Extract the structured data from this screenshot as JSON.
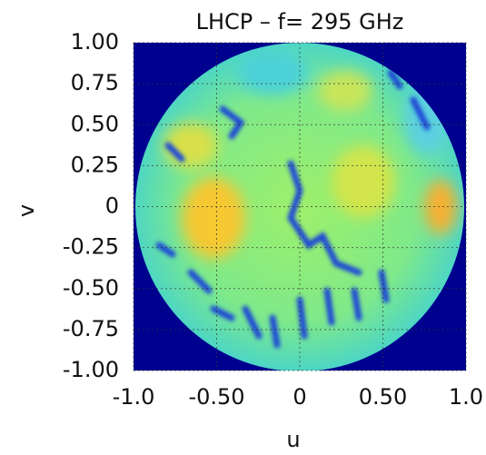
{
  "chart_data": {
    "type": "image",
    "title": "LHCP – f= 295 GHz",
    "x_label": "u",
    "y_label": "v",
    "xlim": [
      -1,
      1
    ],
    "ylim": [
      -1,
      1
    ],
    "xticks": [
      {
        "value": -1,
        "label": "-1.0"
      },
      {
        "value": -0.5,
        "label": "-0.50"
      },
      0,
      {
        "value": 0.5,
        "label": "0.50"
      },
      {
        "value": 1,
        "label": "1.0"
      }
    ],
    "yticks": [
      {
        "value": 1,
        "label": "1.00"
      },
      0.75,
      {
        "value": 0.5,
        "label": "0.50"
      },
      0.25,
      0,
      -0.25,
      {
        "value": -0.5,
        "label": "-0.50"
      },
      -0.75,
      {
        "value": -1,
        "label": "-1.00"
      }
    ],
    "grid": true
  }
}
